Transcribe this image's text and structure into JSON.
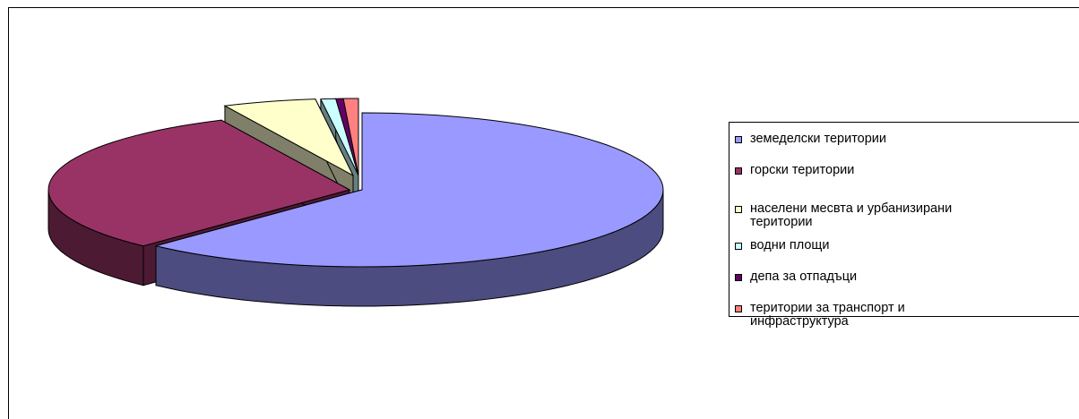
{
  "chart_data": {
    "type": "pie",
    "style": "3d-exploded",
    "legend_position": "right",
    "categories": [
      "земеделски територии",
      "горски територии",
      "населени месвта и урбанизирани\nтеритории",
      "водни площи",
      "депа за отпадъци",
      "територии за транспорт и\nинфраструктура"
    ],
    "values": [
      62.0,
      31.0,
      5.0,
      0.8,
      0.4,
      0.8
    ],
    "colors": [
      "#9999ff",
      "#993366",
      "#ffffcc",
      "#ccffff",
      "#660066",
      "#ff8080"
    ],
    "side_colors": [
      "#4c4c80",
      "#4d1a33",
      "#80806a",
      "#668080",
      "#330033",
      "#804040"
    ]
  }
}
